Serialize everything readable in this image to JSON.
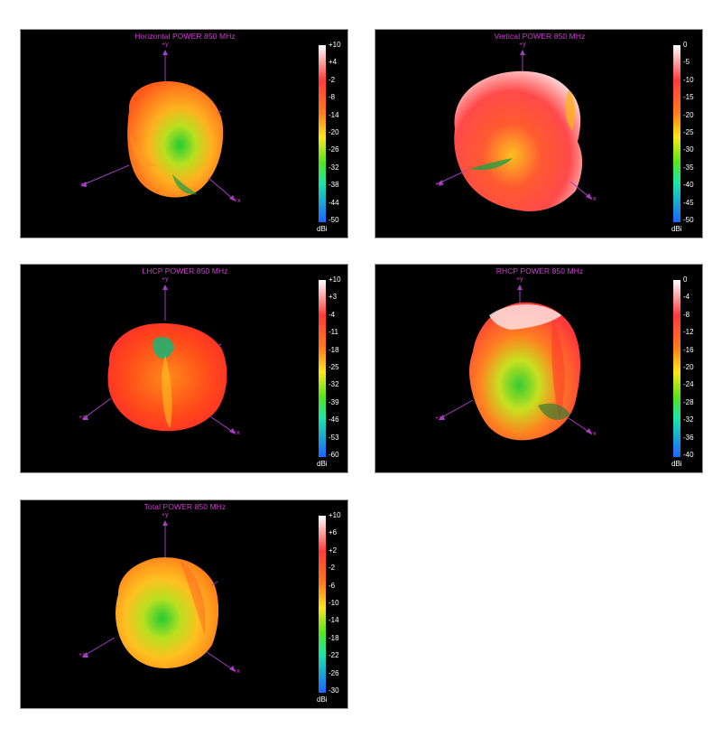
{
  "panels": [
    {
      "title": "Horizontal POWER 850  MHz",
      "scale": [
        "+10",
        "+4",
        "-2",
        "-8",
        "-14",
        "-20",
        "-26",
        "-32",
        "-38",
        "-44",
        "-50"
      ],
      "unit": "dBi",
      "axes": {
        "y": "+y",
        "z": "+z",
        "x": "+x"
      }
    },
    {
      "title": "Vertical POWER 850  MHz",
      "scale": [
        "0",
        "-5",
        "-10",
        "-15",
        "-20",
        "-25",
        "-30",
        "-35",
        "-40",
        "-45",
        "-50"
      ],
      "unit": "dBi",
      "axes": {
        "y": "+y",
        "z": "+z",
        "x": "+x"
      }
    },
    {
      "title": "LHCP POWER 850  MHz",
      "scale": [
        "+10",
        "+3",
        "-4",
        "-11",
        "-18",
        "-25",
        "-32",
        "-39",
        "-46",
        "-53",
        "-60"
      ],
      "unit": "dBi",
      "axes": {
        "y": "+y",
        "z": "+z",
        "x": "+x"
      }
    },
    {
      "title": "RHCP POWER 850  MHz",
      "scale": [
        "0",
        "-4",
        "-8",
        "-12",
        "-16",
        "-20",
        "-24",
        "-28",
        "-32",
        "-36",
        "-40"
      ],
      "unit": "dBi",
      "axes": {
        "y": "+y",
        "z": "+z",
        "x": "+x"
      }
    },
    {
      "title": "Total POWER 850  MHz",
      "scale": [
        "+10",
        "+6",
        "+2",
        "-2",
        "-6",
        "-10",
        "-14",
        "-18",
        "-22",
        "-26",
        "-30"
      ],
      "unit": "dBi",
      "axes": {
        "y": "+y",
        "z": "+z",
        "x": "+x"
      }
    }
  ]
}
